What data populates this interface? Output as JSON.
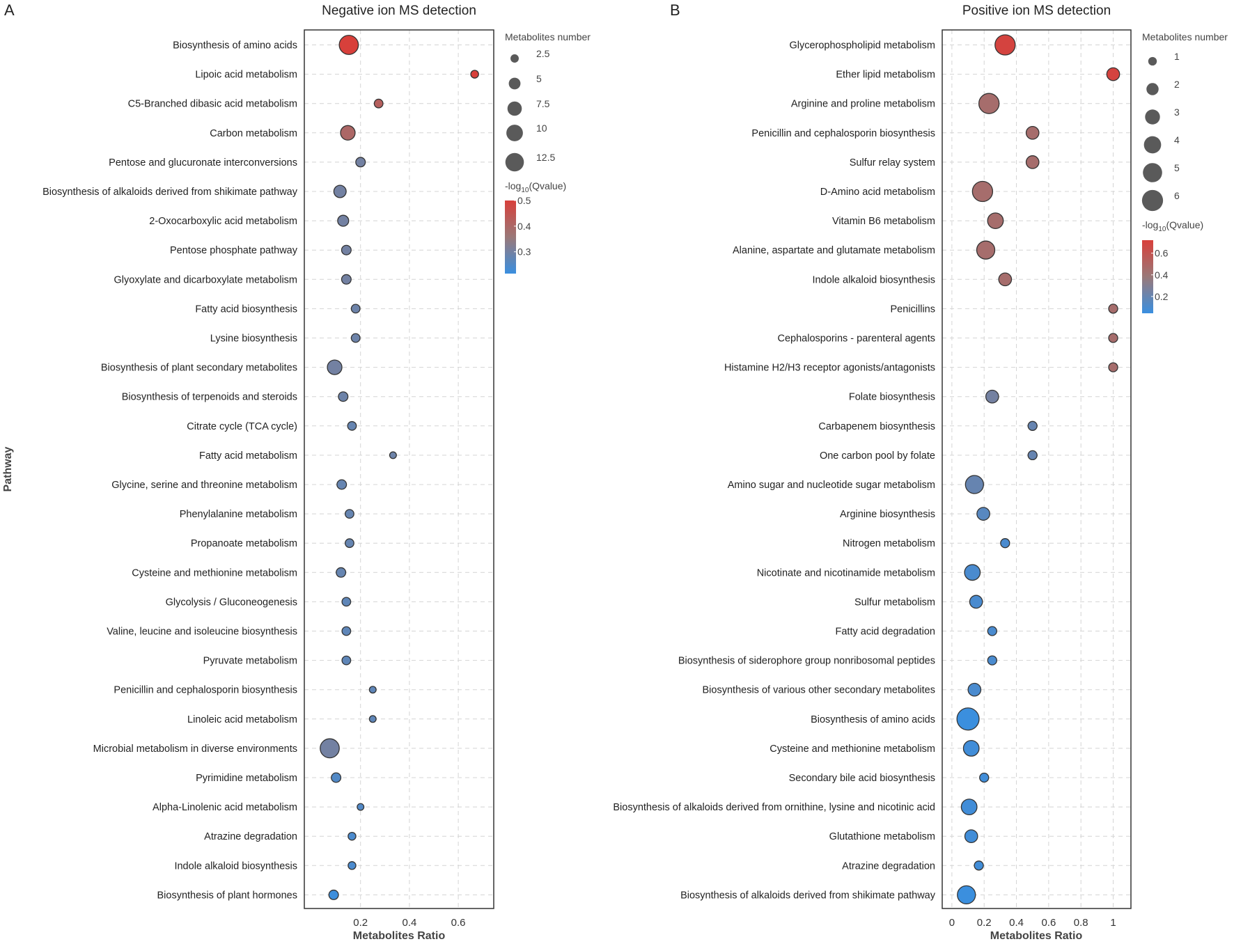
{
  "chart_data": [
    {
      "type": "scatter",
      "panel_label": "A",
      "title": "Negative ion MS detection",
      "xlabel": "Metabolites Ratio",
      "ylabel": "Pathway",
      "xlim": [
        -0.03,
        0.745
      ],
      "xticks": [
        0.2,
        0.4,
        0.6
      ],
      "xtick_labels": [
        "0.2",
        "0.4",
        "0.6"
      ],
      "grid": true,
      "size_legend": {
        "title": "Metabolites number",
        "values": [
          2.5,
          5,
          7.5,
          10,
          12.5
        ],
        "labels": [
          "2.5",
          "5",
          "7.5",
          "10",
          "12.5"
        ]
      },
      "color_legend": {
        "title_prefix": "-log",
        "title_sub": "10",
        "title_suffix": "(Qvalue)",
        "range": [
          0.215,
          0.5
        ],
        "ticks": [
          0.5,
          0.4,
          0.3
        ],
        "tick_labels": [
          "0.5",
          "0.4",
          "0.3"
        ]
      },
      "points": [
        {
          "pathway": "Biosynthesis of amino acids",
          "ratio": 0.152,
          "count": 12,
          "qvalue": 0.5
        },
        {
          "pathway": "Lipoic acid metabolism",
          "ratio": 0.667,
          "count": 2,
          "qvalue": 0.5
        },
        {
          "pathway": "C5-Branched dibasic acid metabolism",
          "ratio": 0.274,
          "count": 2.5,
          "qvalue": 0.42
        },
        {
          "pathway": "Carbon metabolism",
          "ratio": 0.148,
          "count": 7,
          "qvalue": 0.4
        },
        {
          "pathway": "Pentose and glucuronate interconversions",
          "ratio": 0.2,
          "count": 3,
          "qvalue": 0.3
        },
        {
          "pathway": "Biosynthesis of alkaloids derived from shikimate pathway",
          "ratio": 0.116,
          "count": 5,
          "qvalue": 0.3
        },
        {
          "pathway": "2-Oxocarboxylic acid metabolism",
          "ratio": 0.129,
          "count": 4,
          "qvalue": 0.3
        },
        {
          "pathway": "Pentose phosphate pathway",
          "ratio": 0.142,
          "count": 3,
          "qvalue": 0.3
        },
        {
          "pathway": "Glyoxylate and dicarboxylate metabolism",
          "ratio": 0.142,
          "count": 3,
          "qvalue": 0.3
        },
        {
          "pathway": "Fatty acid biosynthesis",
          "ratio": 0.18,
          "count": 2.5,
          "qvalue": 0.29
        },
        {
          "pathway": "Lysine biosynthesis",
          "ratio": 0.18,
          "count": 2.5,
          "qvalue": 0.29
        },
        {
          "pathway": "Biosynthesis of plant secondary metabolites",
          "ratio": 0.094,
          "count": 7,
          "qvalue": 0.3
        },
        {
          "pathway": "Biosynthesis of terpenoids and steroids",
          "ratio": 0.129,
          "count": 3,
          "qvalue": 0.29
        },
        {
          "pathway": "Citrate cycle (TCA cycle)",
          "ratio": 0.165,
          "count": 2.5,
          "qvalue": 0.28
        },
        {
          "pathway": "Fatty acid metabolism",
          "ratio": 0.333,
          "count": 1.5,
          "qvalue": 0.29
        },
        {
          "pathway": "Glycine, serine and threonine metabolism",
          "ratio": 0.123,
          "count": 3,
          "qvalue": 0.28
        },
        {
          "pathway": "Phenylalanine metabolism",
          "ratio": 0.155,
          "count": 2.5,
          "qvalue": 0.28
        },
        {
          "pathway": "Propanoate metabolism",
          "ratio": 0.155,
          "count": 2.5,
          "qvalue": 0.28
        },
        {
          "pathway": "Cysteine and methionine metabolism",
          "ratio": 0.12,
          "count": 3,
          "qvalue": 0.28
        },
        {
          "pathway": "Glycolysis / Gluconeogenesis",
          "ratio": 0.142,
          "count": 2.5,
          "qvalue": 0.27
        },
        {
          "pathway": "Valine, leucine and isoleucine biosynthesis",
          "ratio": 0.142,
          "count": 2.5,
          "qvalue": 0.27
        },
        {
          "pathway": "Pyruvate metabolism",
          "ratio": 0.142,
          "count": 2.5,
          "qvalue": 0.27
        },
        {
          "pathway": "Penicillin and cephalosporin biosynthesis",
          "ratio": 0.25,
          "count": 1.5,
          "qvalue": 0.27
        },
        {
          "pathway": "Linoleic acid metabolism",
          "ratio": 0.25,
          "count": 1.5,
          "qvalue": 0.27
        },
        {
          "pathway": "Microbial metabolism in diverse environments",
          "ratio": 0.074,
          "count": 12,
          "qvalue": 0.3
        },
        {
          "pathway": "Pyrimidine metabolism",
          "ratio": 0.1,
          "count": 3,
          "qvalue": 0.25
        },
        {
          "pathway": "Alpha-Linolenic acid metabolism",
          "ratio": 0.2,
          "count": 1.5,
          "qvalue": 0.25
        },
        {
          "pathway": "Atrazine degradation",
          "ratio": 0.165,
          "count": 2,
          "qvalue": 0.24
        },
        {
          "pathway": "Indole alkaloid biosynthesis",
          "ratio": 0.165,
          "count": 2,
          "qvalue": 0.24
        },
        {
          "pathway": "Biosynthesis of plant hormones",
          "ratio": 0.09,
          "count": 3,
          "qvalue": 0.22
        }
      ]
    },
    {
      "type": "scatter",
      "panel_label": "B",
      "title": "Positive ion MS detection",
      "xlabel": "Metabolites Ratio",
      "ylabel": "",
      "xlim": [
        -0.06,
        1.11
      ],
      "xticks": [
        0,
        0.2,
        0.4,
        0.6,
        0.8,
        1
      ],
      "xtick_labels": [
        "0",
        "0.2",
        "0.4",
        "0.6",
        "0.8",
        "1"
      ],
      "grid": true,
      "size_legend": {
        "title": "Metabolites number",
        "values": [
          1,
          2,
          3,
          4,
          5,
          6
        ],
        "labels": [
          "1",
          "2",
          "3",
          "4",
          "5",
          "6"
        ]
      },
      "color_legend": {
        "title_prefix": "-log",
        "title_sub": "10",
        "title_suffix": "(Qvalue)",
        "range": [
          0.045,
          0.72
        ],
        "ticks": [
          0.6,
          0.4,
          0.2
        ],
        "tick_labels": [
          "0.6",
          "0.4",
          "0.2"
        ]
      },
      "points": [
        {
          "pathway": "Glycerophospholipid metabolism",
          "ratio": 0.33,
          "count": 5,
          "qvalue": 0.7
        },
        {
          "pathway": "Ether lipid metabolism",
          "ratio": 1.0,
          "count": 2,
          "qvalue": 0.7
        },
        {
          "pathway": "Arginine and proline metabolism",
          "ratio": 0.23,
          "count": 5,
          "qvalue": 0.45
        },
        {
          "pathway": "Penicillin and cephalosporin biosynthesis",
          "ratio": 0.5,
          "count": 2,
          "qvalue": 0.45
        },
        {
          "pathway": "Sulfur relay system",
          "ratio": 0.5,
          "count": 2,
          "qvalue": 0.45
        },
        {
          "pathway": "D-Amino acid metabolism",
          "ratio": 0.19,
          "count": 5,
          "qvalue": 0.45
        },
        {
          "pathway": "Vitamin B6 metabolism",
          "ratio": 0.27,
          "count": 3,
          "qvalue": 0.45
        },
        {
          "pathway": "Alanine, aspartate and glutamate metabolism",
          "ratio": 0.21,
          "count": 4,
          "qvalue": 0.45
        },
        {
          "pathway": "Indole alkaloid biosynthesis",
          "ratio": 0.33,
          "count": 2,
          "qvalue": 0.45
        },
        {
          "pathway": "Penicillins",
          "ratio": 1.0,
          "count": 1,
          "qvalue": 0.45
        },
        {
          "pathway": "Cephalosporins - parenteral agents",
          "ratio": 1.0,
          "count": 1,
          "qvalue": 0.45
        },
        {
          "pathway": "Histamine H2/H3 receptor agonists/antagonists",
          "ratio": 1.0,
          "count": 1,
          "qvalue": 0.45
        },
        {
          "pathway": "Folate biosynthesis",
          "ratio": 0.25,
          "count": 2,
          "qvalue": 0.25
        },
        {
          "pathway": "Carbapenem biosynthesis",
          "ratio": 0.5,
          "count": 1,
          "qvalue": 0.2
        },
        {
          "pathway": "One carbon pool by folate",
          "ratio": 0.5,
          "count": 1,
          "qvalue": 0.2
        },
        {
          "pathway": "Amino sugar and nucleotide sugar metabolism",
          "ratio": 0.14,
          "count": 4,
          "qvalue": 0.2
        },
        {
          "pathway": "Arginine biosynthesis",
          "ratio": 0.195,
          "count": 2,
          "qvalue": 0.15
        },
        {
          "pathway": "Nitrogen metabolism",
          "ratio": 0.33,
          "count": 1,
          "qvalue": 0.1
        },
        {
          "pathway": "Nicotinate and nicotinamide metabolism",
          "ratio": 0.127,
          "count": 3,
          "qvalue": 0.1
        },
        {
          "pathway": "Sulfur metabolism",
          "ratio": 0.15,
          "count": 2,
          "qvalue": 0.1
        },
        {
          "pathway": "Fatty acid degradation",
          "ratio": 0.25,
          "count": 1,
          "qvalue": 0.1
        },
        {
          "pathway": "Biosynthesis of siderophore group nonribosomal peptides",
          "ratio": 0.25,
          "count": 1,
          "qvalue": 0.1
        },
        {
          "pathway": "Biosynthesis of various other secondary metabolites",
          "ratio": 0.14,
          "count": 2,
          "qvalue": 0.1
        },
        {
          "pathway": "Biosynthesis of amino acids",
          "ratio": 0.1,
          "count": 6,
          "qvalue": 0.05
        },
        {
          "pathway": "Cysteine and methionine metabolism",
          "ratio": 0.12,
          "count": 3,
          "qvalue": 0.07
        },
        {
          "pathway": "Secondary bile acid biosynthesis",
          "ratio": 0.2,
          "count": 1,
          "qvalue": 0.07
        },
        {
          "pathway": "Biosynthesis of alkaloids derived from ornithine, lysine and nicotinic acid",
          "ratio": 0.107,
          "count": 3,
          "qvalue": 0.07
        },
        {
          "pathway": "Glutathione metabolism",
          "ratio": 0.12,
          "count": 2,
          "qvalue": 0.07
        },
        {
          "pathway": "Atrazine degradation",
          "ratio": 0.167,
          "count": 1,
          "qvalue": 0.07
        },
        {
          "pathway": "Biosynthesis of alkaloids derived from shikimate pathway",
          "ratio": 0.09,
          "count": 4,
          "qvalue": 0.05
        }
      ]
    }
  ],
  "colors": {
    "low": "#3a8fe0",
    "mid": "#9a7878",
    "high": "#d8403b",
    "legend_dot": "#5a5a5a"
  }
}
